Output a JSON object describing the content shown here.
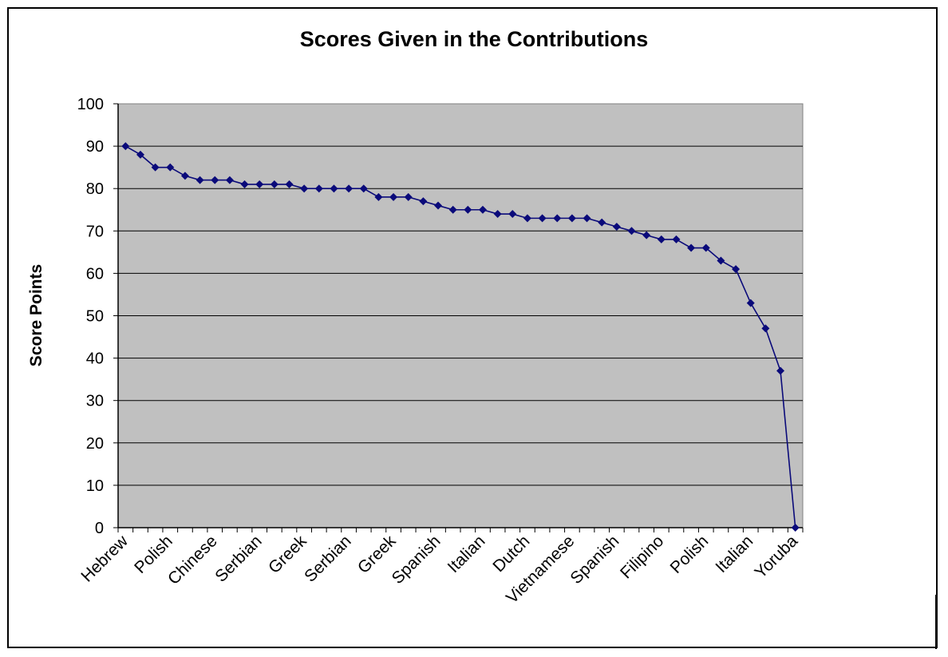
{
  "chart_data": {
    "type": "line",
    "title": "Scores Given in the Contributions",
    "xlabel": "",
    "ylabel": "Score Points",
    "ylim": [
      0,
      100
    ],
    "yticks": [
      0,
      10,
      20,
      30,
      40,
      50,
      60,
      70,
      80,
      90,
      100
    ],
    "grid": true,
    "legend": "none",
    "categories": [
      "Hebrew",
      "",
      "",
      "Polish",
      "",
      "",
      "Chinese",
      "",
      "",
      "Serbian",
      "",
      "",
      "Greek",
      "",
      "",
      "Serbian",
      "",
      "",
      "Greek",
      "",
      "",
      "Spanish",
      "",
      "",
      "Italian",
      "",
      "",
      "Dutch",
      "",
      "",
      "Vietnamese",
      "",
      "",
      "Spanish",
      "",
      "",
      "Filipino",
      "",
      "",
      "Polish",
      "",
      "",
      "Italian",
      "",
      "",
      "Yoruba"
    ],
    "series": [
      {
        "values": [
          90,
          88,
          85,
          85,
          83,
          82,
          82,
          82,
          81,
          81,
          81,
          81,
          80,
          80,
          80,
          80,
          80,
          78,
          78,
          78,
          77,
          76,
          75,
          75,
          75,
          74,
          74,
          73,
          73,
          73,
          73,
          73,
          72,
          71,
          70,
          69,
          68,
          68,
          66,
          66,
          63,
          61,
          53,
          47,
          37,
          0
        ]
      }
    ],
    "colors": {
      "line": "#0a0a7a",
      "marker": "#0a0a7a",
      "plot_bg": "#c0c0c0",
      "grid": "#000000"
    }
  }
}
